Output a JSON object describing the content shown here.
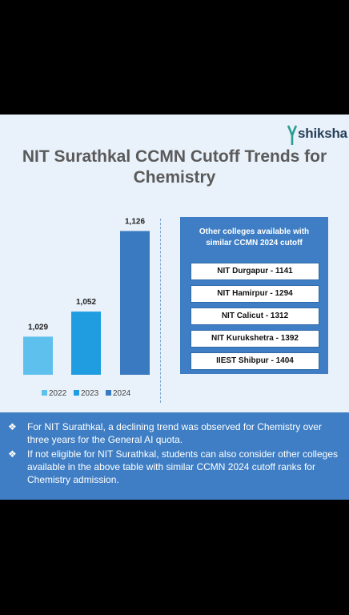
{
  "brand": {
    "name": "shiksha"
  },
  "title": {
    "line1": "NIT Surathkal CCMN Cutoff Trends for",
    "line2": "Chemistry"
  },
  "chart_data": {
    "type": "bar",
    "categories": [
      "2022",
      "2023",
      "2024"
    ],
    "values": [
      1029,
      1052,
      1126
    ],
    "value_labels": [
      "1,029",
      "1,052",
      "1,126"
    ],
    "series": [
      {
        "name": "2022",
        "color": "#5ec0ec"
      },
      {
        "name": "2023",
        "color": "#1f9de0"
      },
      {
        "name": "2024",
        "color": "#3a7ac0"
      }
    ],
    "title": "",
    "xlabel": "",
    "ylabel": "",
    "legend": "bottom",
    "grid": false
  },
  "panel": {
    "heading1": "Other colleges available with",
    "heading2": "similar CCMN 2024 cutoff",
    "colleges": [
      "NIT Durgapur - 1141",
      "NIT Hamirpur - 1294",
      "NIT Calicut - 1312",
      "NIT Kurukshetra - 1392",
      "IIEST Shibpur - 1404"
    ]
  },
  "notes": {
    "marker": "❖",
    "items": [
      "For NIT Surathkal, a declining trend was observed for Chemistry over three years for the General AI quota.",
      "If not eligible for NIT Surathkal, students can also consider other colleges available in the above table with similar CCMN 2024 cutoff ranks for Chemistry admission."
    ]
  }
}
